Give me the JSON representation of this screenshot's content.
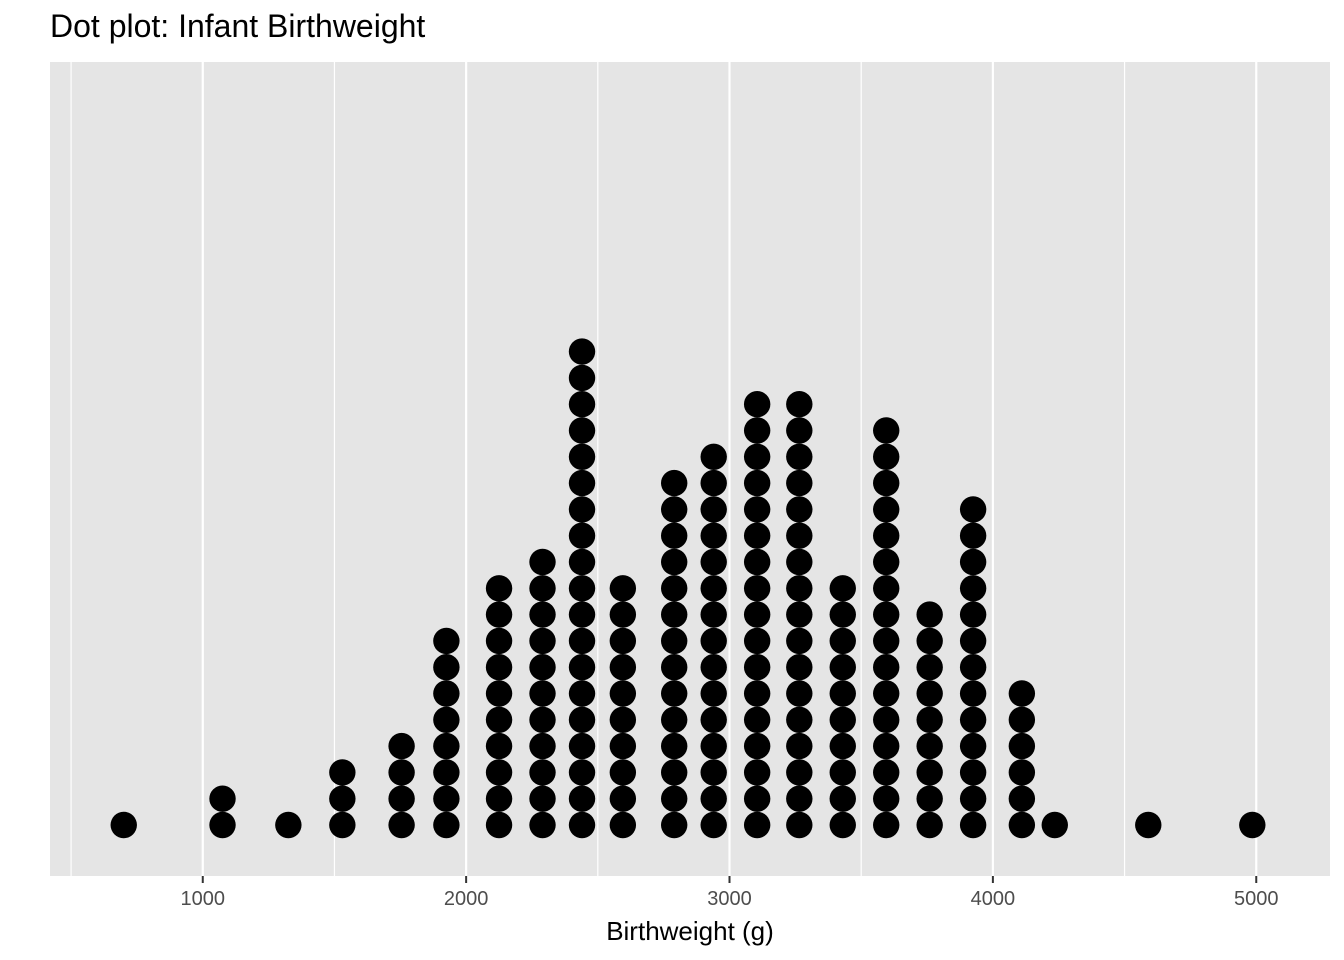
{
  "chart_data": {
    "type": "dotplot",
    "title": "Dot plot: Infant Birthweight",
    "xlabel": "Birthweight (g)",
    "ylabel": "",
    "xlim": [
      420,
      5280
    ],
    "x_ticks": [
      1000,
      2000,
      3000,
      4000,
      5000
    ],
    "x_tick_labels": [
      "1000",
      "2000",
      "3000",
      "4000",
      "5000"
    ],
    "grid": true,
    "background": "#e5e5e5",
    "dot_color": "#000000",
    "bins": [
      {
        "x": 700,
        "count": 1
      },
      {
        "x": 1075,
        "count": 2
      },
      {
        "x": 1325,
        "count": 1
      },
      {
        "x": 1530,
        "count": 3
      },
      {
        "x": 1755,
        "count": 4
      },
      {
        "x": 1925,
        "count": 8
      },
      {
        "x": 2125,
        "count": 10
      },
      {
        "x": 2290,
        "count": 11
      },
      {
        "x": 2440,
        "count": 19
      },
      {
        "x": 2595,
        "count": 10
      },
      {
        "x": 2790,
        "count": 14
      },
      {
        "x": 2940,
        "count": 15
      },
      {
        "x": 3105,
        "count": 17
      },
      {
        "x": 3265,
        "count": 17
      },
      {
        "x": 3430,
        "count": 10
      },
      {
        "x": 3595,
        "count": 16
      },
      {
        "x": 3760,
        "count": 9
      },
      {
        "x": 3925,
        "count": 13
      },
      {
        "x": 4110,
        "count": 6
      },
      {
        "x": 4235,
        "count": 1
      },
      {
        "x": 4590,
        "count": 1
      },
      {
        "x": 4985,
        "count": 1
      }
    ]
  }
}
